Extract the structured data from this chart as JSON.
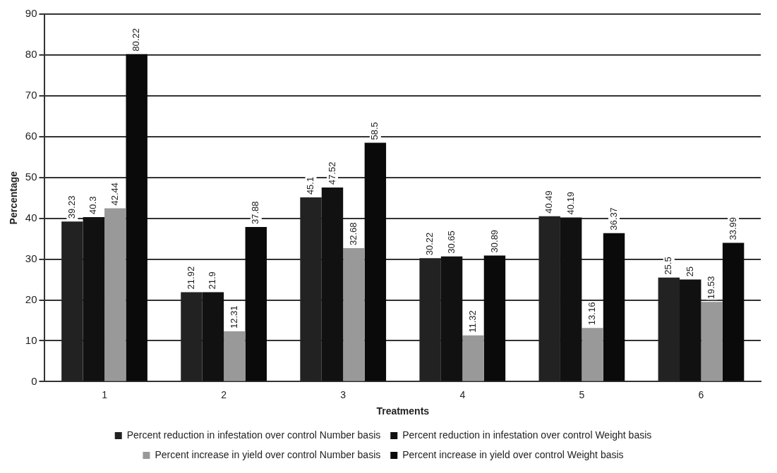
{
  "chart_data": {
    "type": "bar",
    "xlabel": "Treatments",
    "ylabel": "Percentage",
    "categories": [
      "1",
      "2",
      "3",
      "4",
      "5",
      "6"
    ],
    "series": [
      {
        "name": "Percent reduction in infestation over control Number basis",
        "color": "#222222",
        "values": [
          39.23,
          21.92,
          45.1,
          30.22,
          40.49,
          25.5
        ]
      },
      {
        "name": "Percent reduction in infestation over control Weight basis",
        "color": "#111111",
        "values": [
          40.3,
          21.9,
          47.52,
          30.65,
          40.19,
          25
        ]
      },
      {
        "name": "Percent increase in yield over control Number basis",
        "color": "#999999",
        "values": [
          42.44,
          12.31,
          32.68,
          11.32,
          13.16,
          19.53
        ]
      },
      {
        "name": "Percent increase in yield over control Weight basis",
        "color": "#0a0a0a",
        "values": [
          80.22,
          37.88,
          58.5,
          30.89,
          36.37,
          33.99
        ]
      }
    ],
    "ylim": [
      0,
      90
    ],
    "yticks": [
      0,
      10,
      20,
      30,
      40,
      50,
      60,
      70,
      80,
      90
    ],
    "grid": "y",
    "legend": "bottom",
    "data_labels": true
  }
}
